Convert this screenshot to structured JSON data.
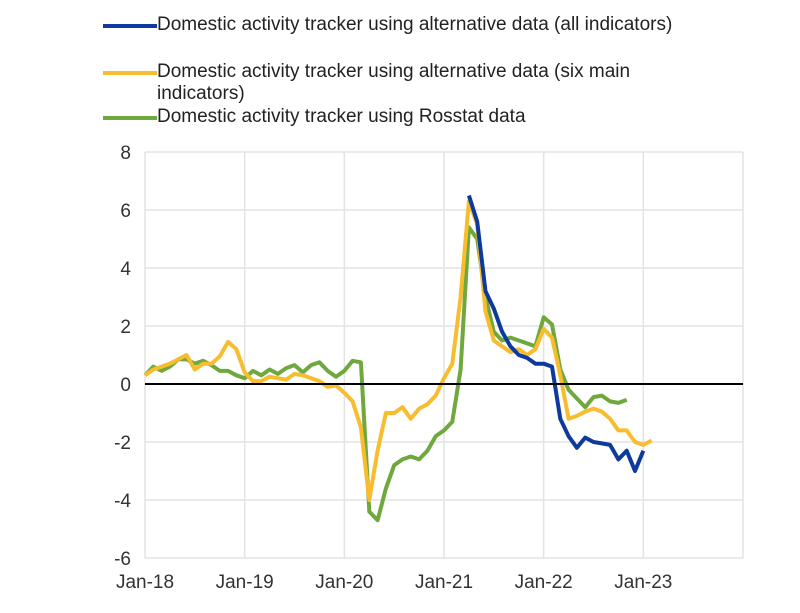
{
  "chart_data": {
    "type": "line",
    "title": "",
    "xlabel": "",
    "ylabel": "",
    "x_unit": "months since Jan-18",
    "xlim": [
      0,
      72
    ],
    "ylim": [
      -6,
      8
    ],
    "yticks": [
      -6,
      -4,
      -2,
      0,
      2,
      4,
      6,
      8
    ],
    "xticks": [
      {
        "m": 0,
        "label": "Jan-18"
      },
      {
        "m": 12,
        "label": "Jan-19"
      },
      {
        "m": 24,
        "label": "Jan-20"
      },
      {
        "m": 36,
        "label": "Jan-21"
      },
      {
        "m": 48,
        "label": "Jan-22"
      },
      {
        "m": 60,
        "label": "Jan-23"
      }
    ],
    "grid": true,
    "legend_position": "top",
    "series": [
      {
        "name": "Domestic activity tracker using alternative data (all indicators)",
        "color": "#0d3a9c",
        "start": 39,
        "values": [
          6.5,
          5.6,
          3.2,
          2.6,
          1.8,
          1.3,
          1.0,
          0.9,
          0.7,
          0.7,
          0.6,
          -1.2,
          -1.8,
          -2.2,
          -1.85,
          -2.0,
          -2.05,
          -2.1,
          -2.6,
          -2.3,
          -3.0,
          -2.3
        ]
      },
      {
        "name": "Domestic activity tracker using alternative data (six main indicators)",
        "color": "#f7bd2e",
        "start": 0,
        "values": [
          0.3,
          0.5,
          0.6,
          0.7,
          0.85,
          1.0,
          0.5,
          0.7,
          0.7,
          0.95,
          1.45,
          1.2,
          0.4,
          0.1,
          0.1,
          0.25,
          0.2,
          0.15,
          0.35,
          0.3,
          0.2,
          0.1,
          -0.1,
          -0.05,
          -0.3,
          -0.6,
          -1.5,
          -4.0,
          -2.3,
          -1.0,
          -1.0,
          -0.8,
          -1.2,
          -0.85,
          -0.7,
          -0.4,
          0.2,
          0.7,
          3.0,
          6.3,
          5.5,
          2.5,
          1.5,
          1.3,
          1.1,
          1.2,
          1.0,
          1.2,
          1.9,
          1.6,
          0.3,
          -1.2,
          -1.1,
          -0.95,
          -0.85,
          -0.95,
          -1.2,
          -1.6,
          -1.6,
          -2.0,
          -2.1,
          -1.95
        ]
      },
      {
        "name": "Domestic activity tracker using Rosstat data",
        "color": "#6fa83d",
        "start": 0,
        "values": [
          0.3,
          0.6,
          0.45,
          0.6,
          0.85,
          0.85,
          0.7,
          0.8,
          0.65,
          0.45,
          0.45,
          0.3,
          0.2,
          0.45,
          0.3,
          0.5,
          0.35,
          0.55,
          0.65,
          0.4,
          0.65,
          0.75,
          0.45,
          0.25,
          0.45,
          0.8,
          0.75,
          -4.4,
          -4.7,
          -3.6,
          -2.8,
          -2.6,
          -2.5,
          -2.6,
          -2.3,
          -1.8,
          -1.6,
          -1.3,
          0.5,
          5.4,
          5.0,
          3.0,
          1.8,
          1.5,
          1.6,
          1.5,
          1.4,
          1.3,
          2.3,
          2.05,
          0.5,
          -0.2,
          -0.5,
          -0.8,
          -0.45,
          -0.4,
          -0.6,
          -0.65,
          -0.55
        ]
      }
    ]
  }
}
